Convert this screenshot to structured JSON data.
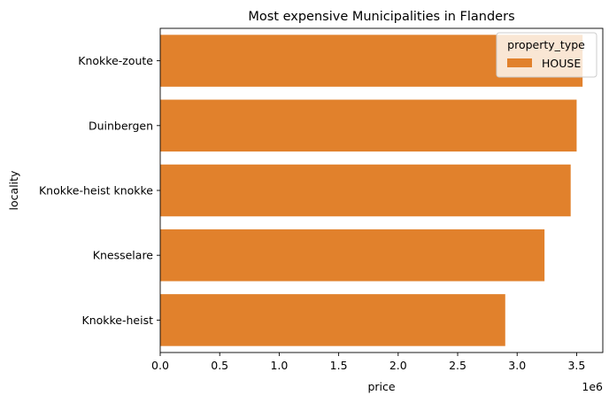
{
  "chart_data": {
    "type": "bar",
    "orientation": "horizontal",
    "title": "Most expensive Municipalities in Flanders",
    "xlabel": "price",
    "ylabel": "locality",
    "x_offset_text": "1e6",
    "categories": [
      "Knokke-zoute",
      "Duinbergen",
      "Knokke-heist knokke",
      "Knesselare",
      "Knokke-heist"
    ],
    "series": [
      {
        "name": "HOUSE",
        "values": [
          3550000,
          3500000,
          3450000,
          3230000,
          2900000
        ],
        "color": "#e1812c"
      }
    ],
    "xlim": [
      0,
      3720000
    ],
    "xticks": [
      0,
      500000,
      1000000,
      1500000,
      2000000,
      2500000,
      3000000,
      3500000
    ],
    "xtick_labels": [
      "0.0",
      "0.5",
      "1.0",
      "1.5",
      "2.0",
      "2.5",
      "3.0",
      "3.5"
    ],
    "legend": {
      "title": "property_type",
      "placement": "top-right"
    },
    "grid": false
  }
}
